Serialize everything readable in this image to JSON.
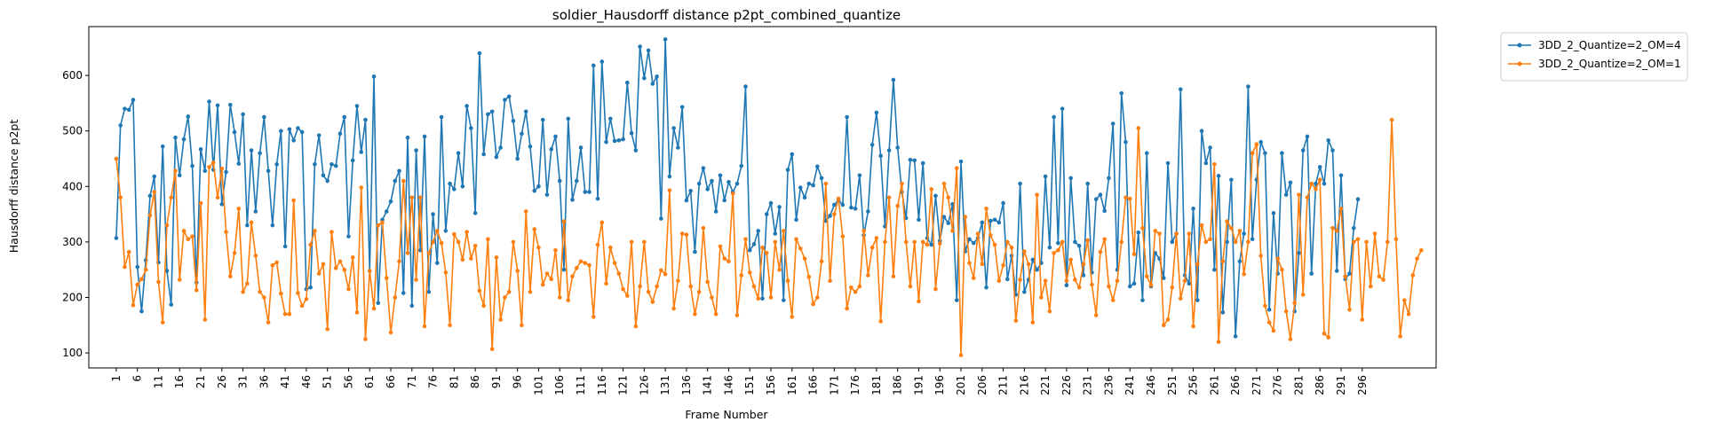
{
  "chart_data": {
    "type": "line",
    "title": "soldier_Hausdorff distance p2pt_combined_quantize",
    "xlabel": "Frame Number",
    "ylabel": "Hausdorff distance p2pt",
    "xlim": [
      -5.5,
      313.5
    ],
    "ylim": [
      73,
      688
    ],
    "x_ticks": [
      1,
      6,
      11,
      16,
      21,
      26,
      31,
      36,
      41,
      46,
      51,
      56,
      61,
      66,
      71,
      76,
      81,
      86,
      91,
      96,
      101,
      106,
      111,
      116,
      121,
      126,
      131,
      136,
      141,
      146,
      151,
      156,
      161,
      166,
      171,
      176,
      181,
      186,
      191,
      196,
      201,
      206,
      211,
      216,
      221,
      226,
      231,
      236,
      241,
      246,
      251,
      256,
      261,
      266,
      271,
      276,
      281,
      286,
      291,
      296
    ],
    "y_ticks": [
      100,
      200,
      300,
      400,
      500,
      600
    ],
    "grid": false,
    "legend_position": "outside top-right",
    "x_start": 1,
    "series": [
      {
        "name": "3DD_2_Quantize=2_OM=4",
        "color": "#1f77b4",
        "values": [
          307,
          510,
          540,
          538,
          556,
          255,
          175,
          267,
          383,
          418,
          263,
          472,
          248,
          187,
          488,
          420,
          485,
          526,
          437,
          227,
          467,
          428,
          553,
          430,
          546,
          368,
          426,
          547,
          498,
          441,
          530,
          330,
          465,
          355,
          460,
          525,
          428,
          330,
          440,
          500,
          292,
          503,
          483,
          505,
          498,
          215,
          218,
          440,
          492,
          420,
          410,
          440,
          437,
          495,
          525,
          310,
          447,
          545,
          462,
          520,
          248,
          598,
          190,
          340,
          355,
          373,
          410,
          428,
          208,
          488,
          185,
          465,
          285,
          490,
          210,
          350,
          262,
          525,
          320,
          405,
          395,
          460,
          400,
          545,
          505,
          352,
          640,
          458,
          530,
          535,
          453,
          470,
          556,
          562,
          518,
          450,
          495,
          535,
          472,
          392,
          400,
          520,
          385,
          467,
          490,
          410,
          250,
          522,
          376,
          410,
          470,
          390,
          390,
          618,
          378,
          625,
          480,
          522,
          482,
          483,
          485,
          587,
          496,
          465,
          652,
          595,
          645,
          585,
          598,
          342,
          665,
          418,
          505,
          470,
          543,
          375,
          392,
          282,
          405,
          433,
          395,
          410,
          355,
          420,
          375,
          408,
          390,
          405,
          437,
          580,
          285,
          296,
          320,
          198,
          350,
          370,
          315,
          363,
          195,
          430,
          458,
          340,
          398,
          380,
          405,
          402,
          436,
          415,
          338,
          347,
          367,
          375,
          367,
          525,
          362,
          360,
          420,
          312,
          355,
          475,
          533,
          455,
          328,
          465,
          592,
          470,
          390,
          343,
          448,
          447,
          340,
          442,
          307,
          295,
          383,
          302,
          345,
          334,
          368,
          195,
          445,
          283,
          305,
          298,
          307,
          335,
          218,
          338,
          340,
          335,
          370,
          233,
          275,
          205,
          405,
          210,
          232,
          268,
          250,
          262,
          418,
          290,
          525,
          298,
          540,
          222,
          415,
          300,
          293,
          240,
          405,
          245,
          377,
          385,
          356,
          415,
          513,
          250,
          568,
          480,
          220,
          225,
          317,
          195,
          460,
          220,
          280,
          270,
          235,
          442,
          300,
          315,
          575,
          240,
          225,
          360,
          195,
          500,
          442,
          470,
          250,
          419,
          173,
          300,
          412,
          130,
          265,
          315,
          580,
          305,
          412,
          480,
          460,
          178,
          352,
          243,
          460,
          385,
          407,
          175,
          280,
          465,
          490,
          243,
          405,
          435,
          405,
          483,
          465,
          248,
          420,
          233,
          243,
          325,
          377
        ]
      },
      {
        "name": "3DD_2_Quantize=2_OM=1",
        "color": "#ff7f0e",
        "values": [
          450,
          380,
          255,
          282,
          186,
          223,
          233,
          250,
          348,
          390,
          228,
          155,
          330,
          380,
          428,
          232,
          320,
          305,
          310,
          213,
          370,
          160,
          435,
          443,
          380,
          432,
          318,
          238,
          280,
          360,
          210,
          225,
          335,
          275,
          210,
          200,
          155,
          258,
          263,
          207,
          170,
          170,
          375,
          208,
          185,
          197,
          295,
          320,
          243,
          260,
          143,
          318,
          253,
          265,
          250,
          215,
          272,
          173,
          398,
          125,
          248,
          180,
          330,
          335,
          235,
          137,
          200,
          265,
          410,
          280,
          380,
          232,
          380,
          148,
          280,
          300,
          320,
          298,
          245,
          150,
          314,
          300,
          268,
          318,
          270,
          293,
          212,
          185,
          305,
          107,
          272,
          160,
          200,
          210,
          300,
          248,
          150,
          355,
          210,
          323,
          290,
          223,
          243,
          233,
          285,
          200,
          337,
          195,
          238,
          253,
          265,
          262,
          258,
          165,
          295,
          335,
          225,
          290,
          262,
          243,
          215,
          203,
          300,
          148,
          220,
          300,
          210,
          192,
          220,
          249,
          242,
          393,
          180,
          230,
          315,
          313,
          220,
          170,
          210,
          325,
          228,
          200,
          170,
          292,
          270,
          265,
          387,
          168,
          240,
          305,
          245,
          220,
          198,
          290,
          280,
          200,
          300,
          250,
          320,
          230,
          165,
          305,
          288,
          270,
          237,
          188,
          200,
          265,
          405,
          230,
          350,
          378,
          310,
          180,
          218,
          210,
          220,
          320,
          240,
          290,
          307,
          157,
          300,
          380,
          238,
          365,
          405,
          300,
          220,
          300,
          193,
          300,
          295,
          395,
          215,
          297,
          405,
          380,
          320,
          433,
          96,
          345,
          262,
          235,
          315,
          260,
          360,
          312,
          295,
          230,
          258,
          300,
          290,
          158,
          232,
          283,
          260,
          155,
          385,
          200,
          230,
          175,
          280,
          285,
          300,
          230,
          268,
          232,
          218,
          260,
          303,
          223,
          168,
          282,
          305,
          220,
          195,
          230,
          300,
          380,
          378,
          278,
          505,
          325,
          238,
          222,
          320,
          315,
          150,
          160,
          218,
          315,
          198,
          230,
          315,
          148,
          260,
          330,
          300,
          305,
          440,
          120,
          265,
          337,
          325,
          300,
          320,
          242,
          300,
          460,
          476,
          275,
          185,
          155,
          140,
          270,
          250,
          175,
          125,
          190,
          385,
          205,
          380,
          405,
          395,
          412,
          135,
          128,
          325,
          320,
          360,
          238,
          178,
          300,
          305,
          160,
          300,
          220,
          315,
          238,
          232,
          300,
          520,
          305,
          130,
          195,
          170,
          240,
          270,
          285
        ]
      }
    ]
  }
}
